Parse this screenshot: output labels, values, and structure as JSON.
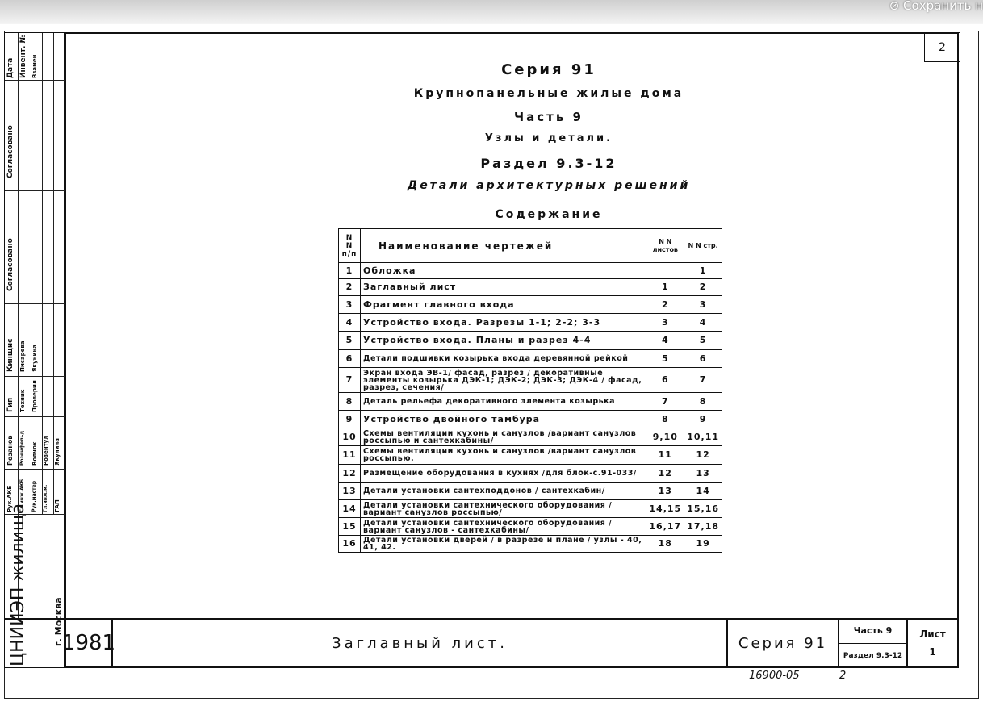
{
  "browser": {
    "save_label": "Сохранить н"
  },
  "sheet_corner_number": "2",
  "header": {
    "series": "Серия 91",
    "title": "Крупнопанельные жилые дома",
    "part": "Часть 9",
    "subtitle": "Узлы и детали.",
    "section": "Раздел 9.3-12",
    "section_title": "Детали архитектурных решений",
    "contents": "Содержание"
  },
  "table": {
    "columns": [
      "N N п/п",
      "Наименование чертежей",
      "N N листов",
      "N N стр."
    ],
    "rows": [
      {
        "n": "1",
        "name": "Обложка",
        "sheets": "",
        "pages": "1"
      },
      {
        "n": "2",
        "name": "Заглавный лист",
        "sheets": "1",
        "pages": "2"
      },
      {
        "n": "3",
        "name": "Фрагмент главного входа",
        "sheets": "2",
        "pages": "3"
      },
      {
        "n": "4",
        "name": "Устройство входа. Разрезы 1-1; 2-2; 3-3",
        "sheets": "3",
        "pages": "4"
      },
      {
        "n": "5",
        "name": "Устройство входа. Планы и разрез 4-4",
        "sheets": "4",
        "pages": "5"
      },
      {
        "n": "6",
        "name": "Детали подшивки козырька входа деревянной рейкой",
        "sheets": "5",
        "pages": "6"
      },
      {
        "n": "7",
        "name": "Экран входа ЭВ-1/ фасад, разрез / декоративные элементы козырька ДЭК-1; ДЭК-2; ДЭК-3; ДЭК-4 / фасад, разрез, сечения/",
        "sheets": "6",
        "pages": "7"
      },
      {
        "n": "8",
        "name": "Деталь рельефа декоративного элемента козырька",
        "sheets": "7",
        "pages": "8"
      },
      {
        "n": "9",
        "name": "Устройство двойного тамбура",
        "sheets": "8",
        "pages": "9"
      },
      {
        "n": "10",
        "name": "Схемы вентиляции кухонь и санузлов /вариант санузлов россыпью и сантехкабины/",
        "sheets": "9,10",
        "pages": "10,11"
      },
      {
        "n": "11",
        "name": "Схемы вентиляции кухонь и санузлов /вариант санузлов россыпью.",
        "sheets": "11",
        "pages": "12"
      },
      {
        "n": "12",
        "name": "Размещение оборудования в кухнях /для блок-с.91-033/",
        "sheets": "12",
        "pages": "13"
      },
      {
        "n": "13",
        "name": "Детали установки сантехподдонов / сантехкабин/",
        "sheets": "13",
        "pages": "14"
      },
      {
        "n": "14",
        "name": "Детали установки сантехнического оборудования / вариант санузлов россыпью/",
        "sheets": "14,15",
        "pages": "15,16"
      },
      {
        "n": "15",
        "name": "Детали установки сантехнического оборудования /вариант санузлов - сантехкабины/",
        "sheets": "16,17",
        "pages": "17,18"
      },
      {
        "n": "16",
        "name": "Детали установки дверей / в разрезе и плане / узлы - 40, 41, 42.",
        "sheets": "18",
        "pages": "19"
      }
    ]
  },
  "side_strip": {
    "labels": [
      "Дата",
      "Инвент. №",
      "Взамен",
      "Согласовано",
      "Согласовано",
      "Кинщис",
      "Писарева",
      "Якунина",
      "Гип",
      "Техник",
      "Проверил",
      "Розанов",
      "Розенфельд",
      "Волчок",
      "Розентул",
      "Якунина",
      "Рук.АКБ",
      "Гл.инж.АКБ",
      "Рук.мастер",
      "Гл.инж.м.",
      "ГАП"
    ],
    "org": "ЦНИИЭП жилища",
    "city": "г. Москва"
  },
  "title_block": {
    "year": "1981",
    "sheet_title": "Заглавный лист.",
    "series": "Серия 91",
    "part": "Часть 9",
    "section": "Раздел 9.3-12",
    "sheet_label": "Лист",
    "sheet_value": "1"
  },
  "footer": {
    "archive_no": "16900-05",
    "page": "2"
  }
}
